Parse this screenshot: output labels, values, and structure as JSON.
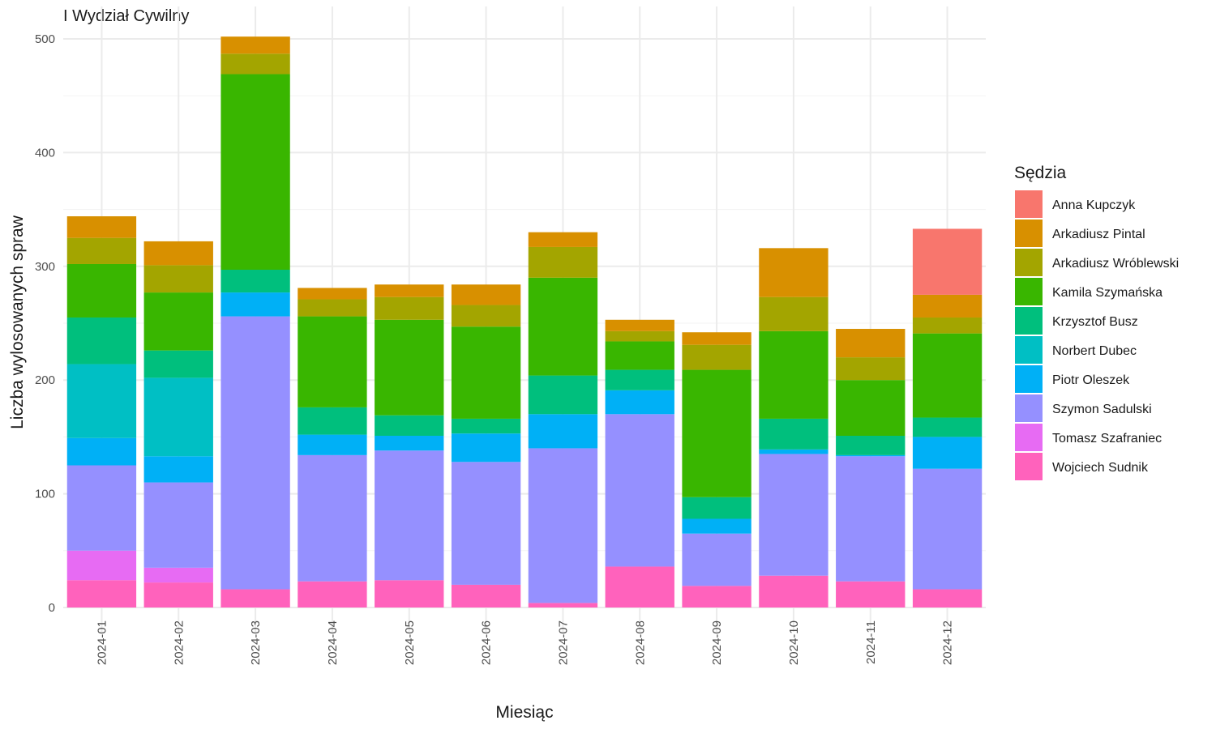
{
  "chart_data": {
    "type": "bar",
    "stacked": true,
    "title": "I Wydział Cywilny",
    "xlabel": "Miesiąc",
    "ylabel": "Liczba wylosowanych spraw",
    "ylim": [
      0,
      510
    ],
    "yticks": [
      0,
      100,
      200,
      300,
      400,
      500
    ],
    "grid": true,
    "legend": {
      "title": "Sędzia",
      "position": "right"
    },
    "categories": [
      "2024-01",
      "2024-02",
      "2024-03",
      "2024-04",
      "2024-05",
      "2024-06",
      "2024-07",
      "2024-08",
      "2024-09",
      "2024-10",
      "2024-11",
      "2024-12"
    ],
    "series": [
      {
        "name": "Anna Kupczyk",
        "color": "#F8766D",
        "values": [
          0,
          0,
          0,
          0,
          0,
          0,
          0,
          0,
          0,
          0,
          0,
          58
        ]
      },
      {
        "name": "Arkadiusz Pintal",
        "color": "#D89000",
        "values": [
          19,
          21,
          15,
          10,
          11,
          18,
          13,
          10,
          11,
          43,
          25,
          20
        ]
      },
      {
        "name": "Arkadiusz Wróblewski",
        "color": "#A3A500",
        "values": [
          23,
          24,
          18,
          15,
          20,
          19,
          27,
          9,
          22,
          30,
          20,
          14
        ]
      },
      {
        "name": "Kamila Szymańska",
        "color": "#39B600",
        "values": [
          47,
          51,
          172,
          80,
          84,
          81,
          86,
          25,
          112,
          77,
          49,
          74
        ]
      },
      {
        "name": "Krzysztof Busz",
        "color": "#00BF7D",
        "values": [
          41,
          24,
          20,
          24,
          18,
          13,
          34,
          18,
          19,
          27,
          17,
          17
        ]
      },
      {
        "name": "Norbert Dubec",
        "color": "#00BFC4",
        "values": [
          65,
          69,
          0,
          0,
          0,
          0,
          0,
          0,
          0,
          0,
          0,
          0
        ]
      },
      {
        "name": "Piotr Oleszek",
        "color": "#00B0F6",
        "values": [
          24,
          23,
          21,
          18,
          13,
          25,
          30,
          21,
          13,
          4,
          1,
          28
        ]
      },
      {
        "name": "Szymon Sadulski",
        "color": "#9590FF",
        "values": [
          75,
          75,
          240,
          111,
          114,
          108,
          136,
          134,
          46,
          107,
          110,
          106
        ]
      },
      {
        "name": "Tomasz Szafraniec",
        "color": "#E76BF3",
        "values": [
          26,
          13,
          0,
          0,
          0,
          0,
          0,
          0,
          0,
          0,
          0,
          0
        ]
      },
      {
        "name": "Wojciech Sudnik",
        "color": "#FF62BC",
        "values": [
          24,
          22,
          16,
          23,
          24,
          20,
          4,
          36,
          19,
          28,
          23,
          16
        ]
      }
    ]
  }
}
